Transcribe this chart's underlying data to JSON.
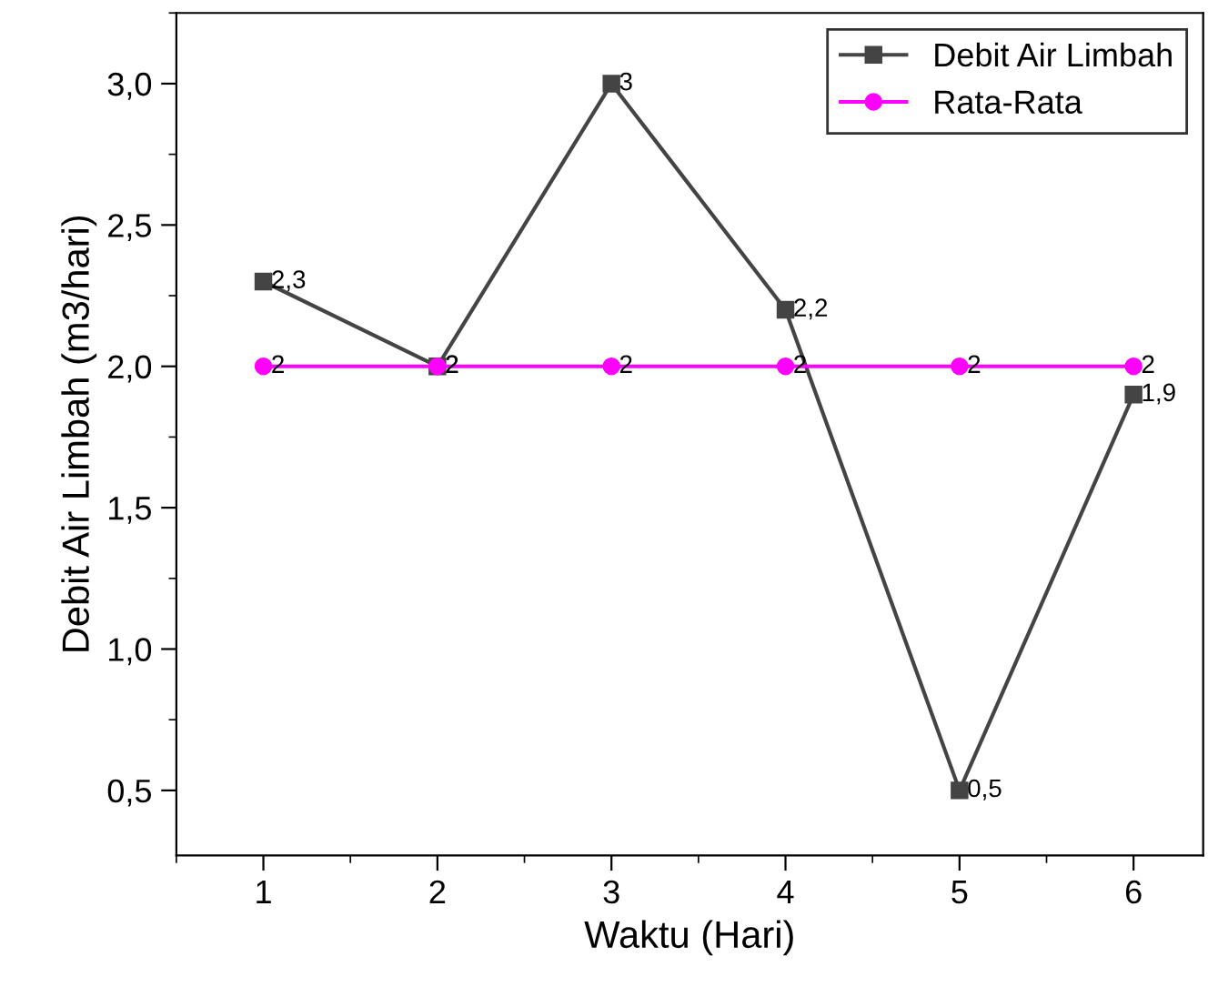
{
  "chart_data": {
    "type": "line",
    "xlabel": "Waktu (Hari)",
    "ylabel": "Debit Air Limbah (m3/hari)",
    "x": [
      1,
      2,
      3,
      4,
      5,
      6
    ],
    "series": [
      {
        "name": "Debit Air Limbah",
        "color": "#444444",
        "marker": "square",
        "values": [
          2.3,
          2,
          3,
          2.2,
          0.5,
          1.9
        ],
        "value_labels": [
          "2,3",
          "2",
          "3",
          "2,2",
          "0,5",
          "1,9"
        ]
      },
      {
        "name": "Rata-Rata",
        "color": "#ff00ff",
        "marker": "circle",
        "values": [
          2,
          2,
          2,
          2,
          2,
          2
        ],
        "value_labels": [
          "2",
          "2",
          "2",
          "2",
          "2",
          "2"
        ]
      }
    ],
    "xlim": [
      0.5,
      6.4
    ],
    "ylim": [
      0.27,
      3.25
    ],
    "xticks": [
      1,
      2,
      3,
      4,
      5,
      6
    ],
    "yticks": [
      {
        "value": 0.5,
        "label": "0,5"
      },
      {
        "value": 1.0,
        "label": "1,0"
      },
      {
        "value": 1.5,
        "label": "1,5"
      },
      {
        "value": 2.0,
        "label": "2,0"
      },
      {
        "value": 2.5,
        "label": "2,5"
      },
      {
        "value": 3.0,
        "label": "3,0"
      }
    ],
    "legend": "top right",
    "grid": false,
    "line_style": "solid"
  }
}
